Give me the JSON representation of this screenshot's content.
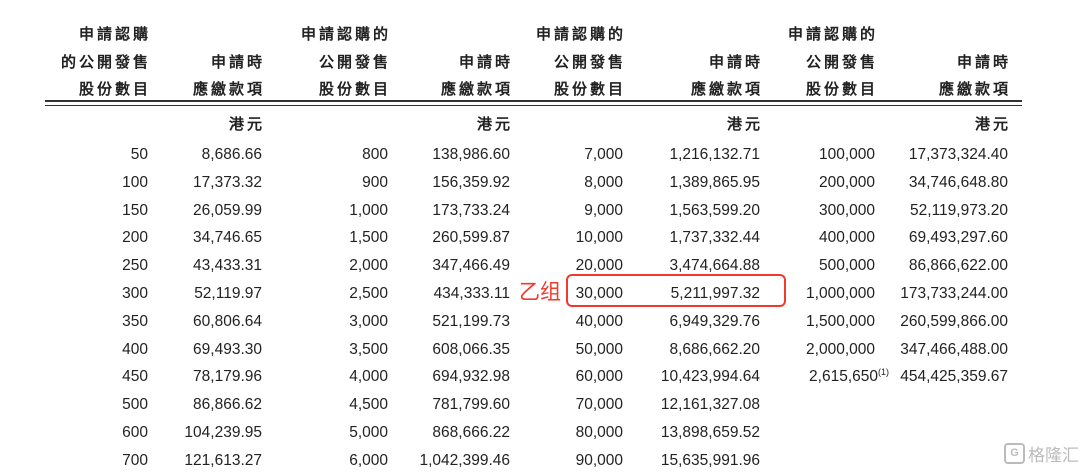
{
  "headers": {
    "shares_first": [
      "申請認購",
      "的公開發售",
      "股份數目"
    ],
    "shares": [
      "申請認購的",
      "公開發售",
      "股份數目"
    ],
    "amount": [
      "",
      "申請時",
      "應繳款項"
    ],
    "unit": "港元"
  },
  "groups": [
    {
      "shares": [
        "50",
        "100",
        "150",
        "200",
        "250",
        "300",
        "350",
        "400",
        "450",
        "500",
        "600",
        "700"
      ],
      "amounts": [
        "8,686.66",
        "17,373.32",
        "26,059.99",
        "34,746.65",
        "43,433.31",
        "52,119.97",
        "60,806.64",
        "69,493.30",
        "78,179.96",
        "86,866.62",
        "104,239.95",
        "121,613.27"
      ]
    },
    {
      "shares": [
        "800",
        "900",
        "1,000",
        "1,500",
        "2,000",
        "2,500",
        "3,000",
        "3,500",
        "4,000",
        "4,500",
        "5,000",
        "6,000"
      ],
      "amounts": [
        "138,986.60",
        "156,359.92",
        "173,733.24",
        "260,599.87",
        "347,466.49",
        "434,333.11",
        "521,199.73",
        "608,066.35",
        "694,932.98",
        "781,799.60",
        "868,666.22",
        "1,042,399.46"
      ]
    },
    {
      "shares": [
        "7,000",
        "8,000",
        "9,000",
        "10,000",
        "20,000",
        "30,000",
        "40,000",
        "50,000",
        "60,000",
        "70,000",
        "80,000",
        "90,000"
      ],
      "amounts": [
        "1,216,132.71",
        "1,389,865.95",
        "1,563,599.20",
        "1,737,332.44",
        "3,474,664.88",
        "5,211,997.32",
        "6,949,329.76",
        "8,686,662.20",
        "10,423,994.64",
        "12,161,327.08",
        "13,898,659.52",
        "15,635,991.96"
      ]
    },
    {
      "shares": [
        "100,000",
        "200,000",
        "300,000",
        "400,000",
        "500,000",
        "1,000,000",
        "1,500,000",
        "2,000,000",
        "2,615,650"
      ],
      "amounts": [
        "17,373,324.40",
        "34,746,648.80",
        "52,119,973.20",
        "69,493,297.60",
        "86,866,622.00",
        "173,733,244.00",
        "260,599,866.00",
        "347,466,488.00",
        "454,425,359.67"
      ]
    }
  ],
  "footnote_marker": "(1)",
  "annotation": {
    "label": "乙组",
    "highlighted_row": "30,000 / 5,211,997.32",
    "color": "#f03a2e"
  },
  "watermark": {
    "text": "格隆汇",
    "logo": "G"
  }
}
